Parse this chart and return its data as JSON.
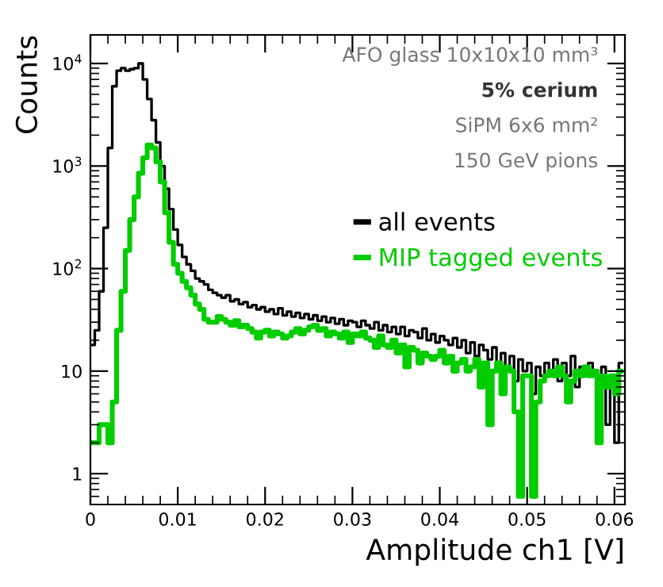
{
  "chart_data": {
    "type": "histogram",
    "xlabel": "Amplitude ch1 [V]",
    "ylabel": "Counts",
    "bins": [
      0,
      0.0005,
      0.001,
      0.0015,
      0.002,
      0.0025,
      0.003,
      0.0035,
      0.004,
      0.0045,
      0.005,
      0.0055,
      0.006,
      0.0065,
      0.007,
      0.0075,
      0.008,
      0.0085,
      0.009,
      0.0095,
      0.01,
      0.0105,
      0.011,
      0.0115,
      0.012,
      0.0125,
      0.013,
      0.0135,
      0.014,
      0.0145,
      0.015,
      0.0155,
      0.016,
      0.0165,
      0.017,
      0.0175,
      0.018,
      0.0185,
      0.019,
      0.0195,
      0.02,
      0.0205,
      0.021,
      0.0215,
      0.022,
      0.0225,
      0.023,
      0.0235,
      0.024,
      0.0245,
      0.025,
      0.0255,
      0.026,
      0.0265,
      0.027,
      0.0275,
      0.028,
      0.0285,
      0.029,
      0.0295,
      0.03,
      0.0305,
      0.031,
      0.0315,
      0.032,
      0.0325,
      0.033,
      0.0335,
      0.034,
      0.0345,
      0.035,
      0.0355,
      0.036,
      0.0365,
      0.037,
      0.0375,
      0.038,
      0.0385,
      0.039,
      0.0395,
      0.04,
      0.0405,
      0.041,
      0.0415,
      0.042,
      0.0425,
      0.043,
      0.0435,
      0.044,
      0.0445,
      0.045,
      0.0455,
      0.046,
      0.0465,
      0.047,
      0.0475,
      0.048,
      0.0485,
      0.049,
      0.0495,
      0.05,
      0.0505,
      0.051,
      0.0515,
      0.052,
      0.0525,
      0.053,
      0.0535,
      0.054,
      0.0545,
      0.055,
      0.0555,
      0.056,
      0.0565,
      0.057,
      0.0575,
      0.058,
      0.0585,
      0.059,
      0.0595,
      0.06,
      0.0605,
      0.061
    ],
    "series": [
      {
        "name": "all events",
        "color": "#000000",
        "values": [
          18,
          25,
          60,
          250,
          1500,
          6000,
          8500,
          9000,
          8500,
          8800,
          9000,
          10000,
          7000,
          4500,
          2800,
          1700,
          1000,
          600,
          380,
          240,
          170,
          130,
          110,
          95,
          80,
          75,
          70,
          62,
          58,
          55,
          52,
          55,
          48,
          50,
          45,
          47,
          42,
          44,
          40,
          42,
          38,
          40,
          36,
          41,
          35,
          38,
          34,
          37,
          33,
          36,
          32,
          35,
          31,
          34,
          30,
          33,
          29,
          32,
          28,
          31,
          30,
          27,
          31,
          28,
          26,
          30,
          25,
          28,
          24,
          27,
          23,
          27,
          22,
          25,
          24,
          21,
          26,
          20,
          23,
          19,
          22,
          20,
          18,
          21,
          17,
          20,
          15,
          19,
          14,
          18,
          16,
          13,
          17,
          12,
          15,
          11,
          14,
          8,
          13,
          10,
          12,
          6,
          11,
          9,
          12,
          10,
          13,
          8,
          12,
          9,
          14,
          7,
          11,
          9,
          12,
          10,
          4,
          11,
          3,
          9,
          2,
          12
        ]
      },
      {
        "name": "MIP tagged events",
        "color": "#00cc00",
        "values": [
          2,
          2,
          3,
          3,
          2,
          5,
          25,
          60,
          150,
          300,
          500,
          850,
          1200,
          1600,
          1500,
          1100,
          700,
          350,
          180,
          110,
          90,
          75,
          65,
          55,
          45,
          40,
          32,
          30,
          30,
          34,
          32,
          30,
          28,
          31,
          27,
          28,
          26,
          24,
          21,
          24,
          25,
          22,
          24,
          23,
          21,
          22,
          24,
          26,
          23,
          25,
          27,
          28,
          25,
          26,
          22,
          24,
          23,
          21,
          24,
          19,
          23,
          22,
          24,
          21,
          20,
          17,
          22,
          18,
          17,
          20,
          15,
          18,
          11,
          17,
          16,
          12,
          15,
          14,
          13,
          14,
          16,
          12,
          14,
          10,
          12,
          13,
          10,
          11,
          13,
          7,
          12,
          3,
          10,
          12,
          6,
          11,
          10,
          4,
          0.6,
          9,
          9,
          0.6,
          5,
          8,
          9,
          10,
          9,
          11,
          9,
          5,
          8,
          10,
          9,
          11,
          9,
          10,
          2,
          9,
          7,
          9,
          6,
          10
        ]
      }
    ],
    "log": "y",
    "xlim": [
      0,
      0.0612
    ],
    "ylim": [
      0.5,
      19000
    ],
    "xticks": [
      0,
      0.01,
      0.02,
      0.03,
      0.04,
      0.05,
      0.06
    ],
    "yticks": [
      1,
      10,
      {
        "value": 100,
        "label": "10$^{2}$"
      },
      {
        "value": 1000,
        "label": "10$^{3}$"
      },
      {
        "value": 10000,
        "label": "10$^{4}$"
      }
    ],
    "legend": "right",
    "grid": false,
    "annotations": [
      "AFO glass 10x10x10 mm³",
      "5% cerium",
      "SiPM 6x6 mm²",
      "150 GeV pions"
    ]
  }
}
